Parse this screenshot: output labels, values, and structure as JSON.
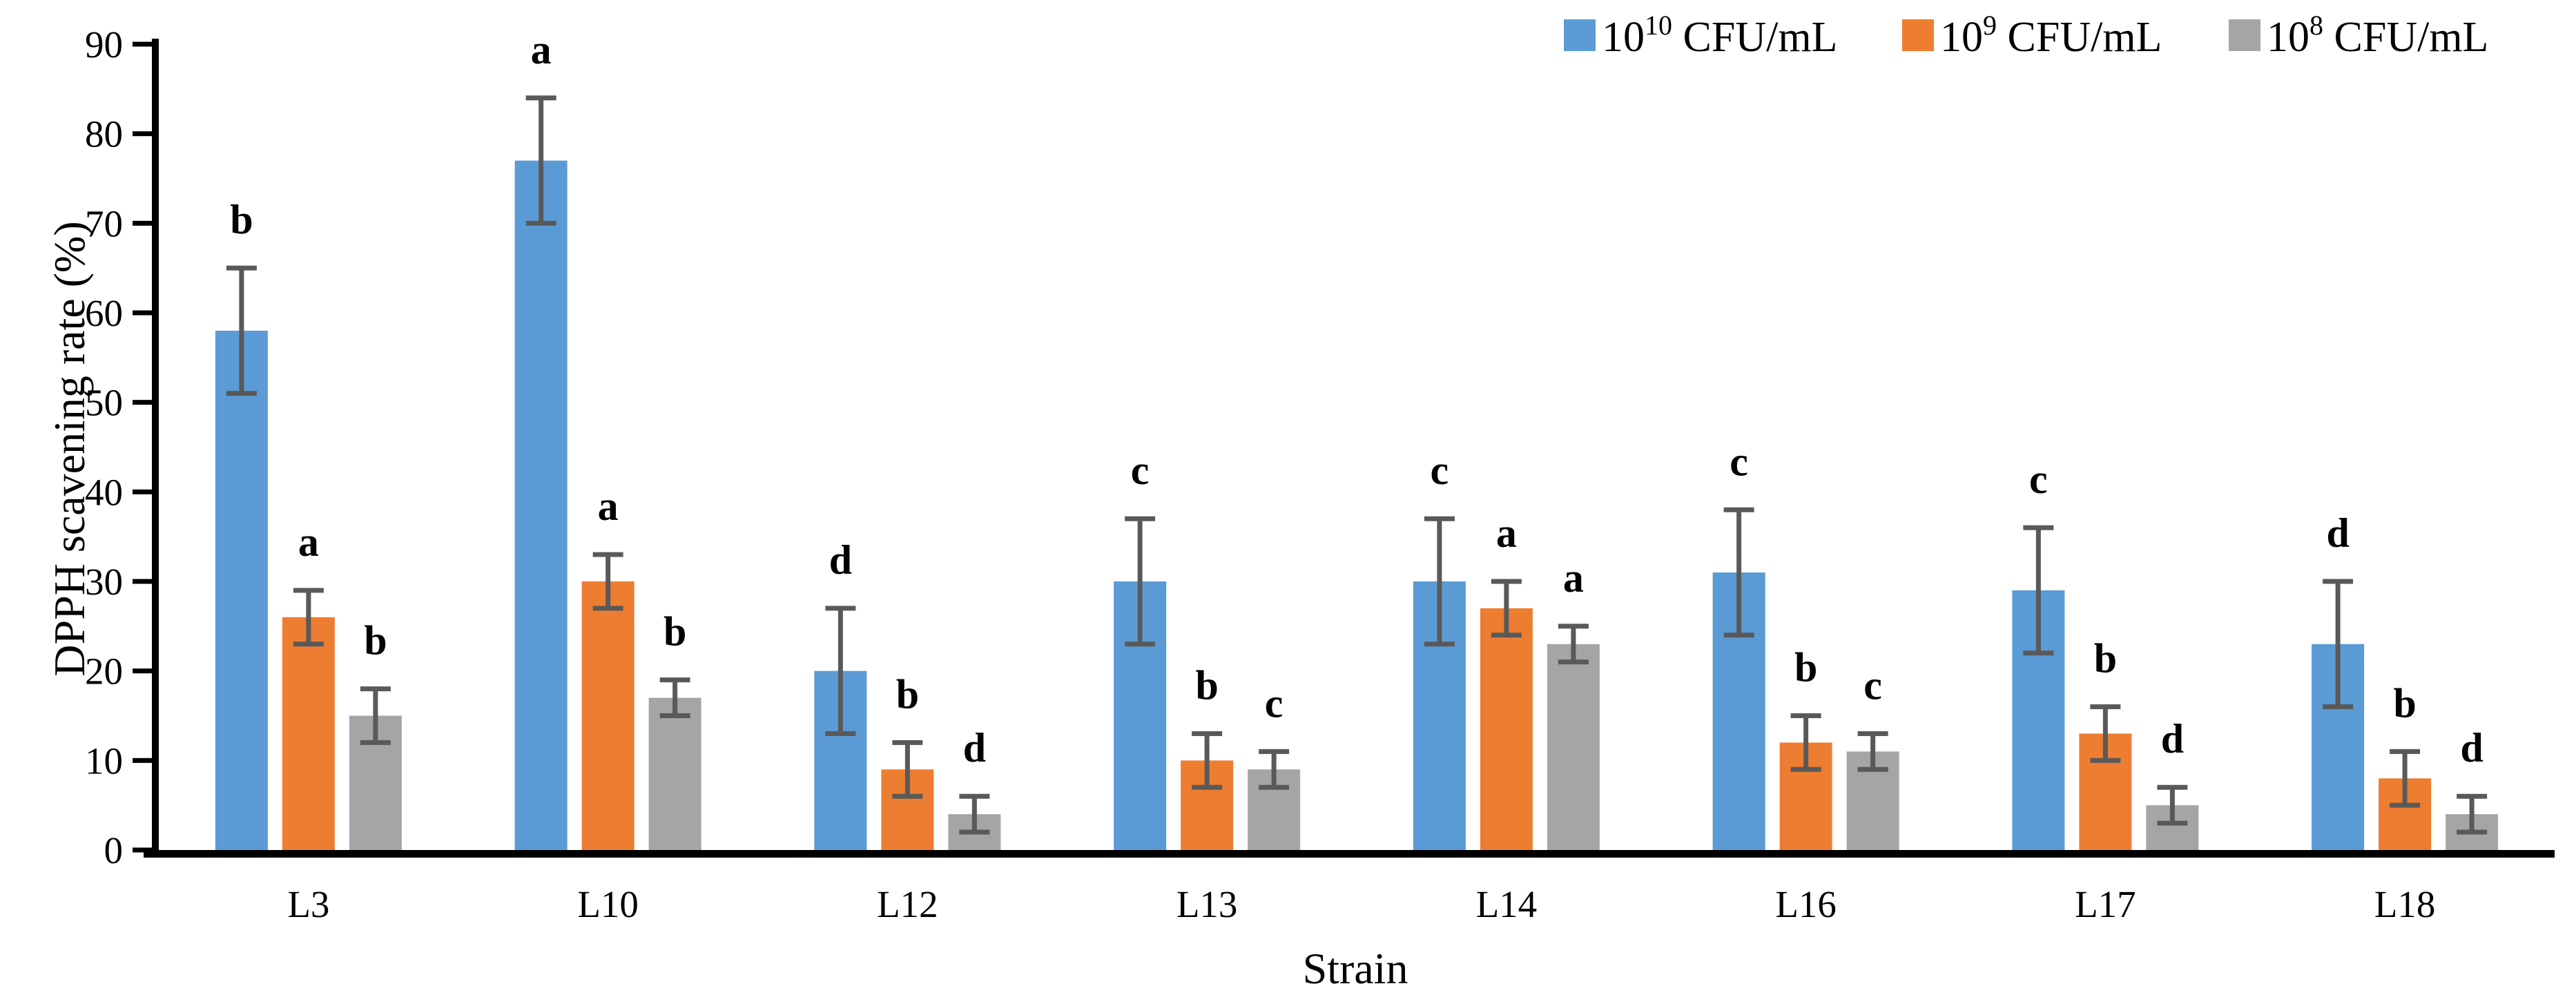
{
  "chart_data": {
    "type": "bar",
    "title": "",
    "xlabel": "Strain",
    "ylabel": "DPPH scavening rate (%)",
    "categories": [
      "L3",
      "L10",
      "L12",
      "L13",
      "L14",
      "L16",
      "L17",
      "L18"
    ],
    "ylim": [
      0,
      90
    ],
    "ytick_step": 10,
    "ytick_labels": [
      "0",
      "10",
      "20",
      "30",
      "40",
      "50",
      "60",
      "70",
      "80",
      "90"
    ],
    "grid": false,
    "legend_position": "top-right",
    "axis_color": "#000000",
    "error_bar_color": "#595959",
    "series": [
      {
        "name": "10¹⁰ CFU/mL",
        "label_base": "10",
        "label_exp": "10",
        "label_unit": "CFU/mL",
        "color": "#5B9BD5",
        "values": [
          58,
          77,
          20,
          30,
          30,
          31,
          29,
          23
        ],
        "errors": [
          7,
          7,
          7,
          7,
          7,
          7,
          7,
          7
        ],
        "letters": [
          "b",
          "a",
          "d",
          "c",
          "c",
          "c",
          "c",
          "d"
        ]
      },
      {
        "name": "10⁹ CFU/mL",
        "label_base": "10",
        "label_exp": "9",
        "label_unit": "CFU/mL",
        "color": "#ED7D31",
        "values": [
          26,
          30,
          9,
          10,
          27,
          12,
          13,
          8
        ],
        "errors": [
          3,
          3,
          3,
          3,
          3,
          3,
          3,
          3
        ],
        "letters": [
          "a",
          "a",
          "b",
          "b",
          "a",
          "b",
          "b",
          "b"
        ]
      },
      {
        "name": "10⁸ CFU/mL",
        "label_base": "10",
        "label_exp": "8",
        "label_unit": "CFU/mL",
        "color": "#A5A5A5",
        "values": [
          15,
          17,
          4,
          9,
          23,
          11,
          5,
          4
        ],
        "errors": [
          3,
          2,
          2,
          2,
          2,
          2,
          2,
          2
        ],
        "letters": [
          "b",
          "b",
          "d",
          "c",
          "a",
          "c",
          "d",
          "d"
        ]
      }
    ]
  }
}
